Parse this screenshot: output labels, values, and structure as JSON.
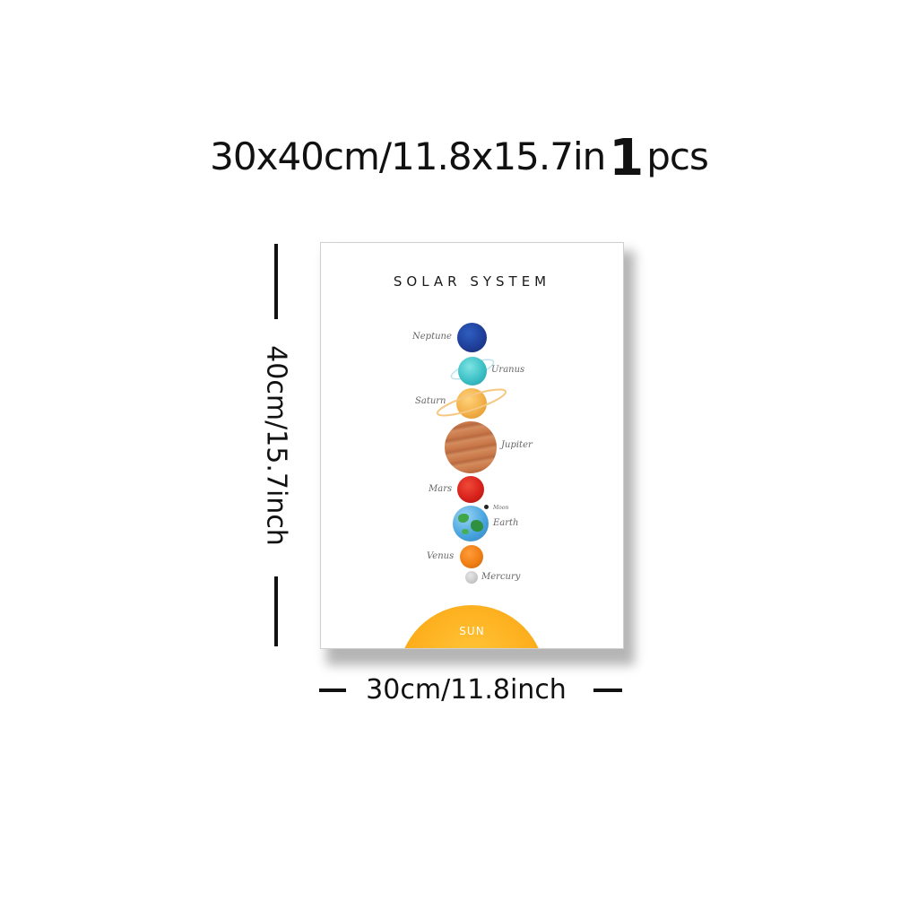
{
  "headline": {
    "size_text": "30x40cm/11.8x15.7in",
    "quantity": "1",
    "unit": "pcs"
  },
  "poster": {
    "title": "SOLAR SYSTEM",
    "planets": [
      {
        "name": "Neptune",
        "color": "#1f3f9a"
      },
      {
        "name": "Uranus",
        "color": "#3cc1c6"
      },
      {
        "name": "Saturn",
        "color": "#f2b048"
      },
      {
        "name": "Jupiter",
        "color": "#c9784a"
      },
      {
        "name": "Mars",
        "color": "#d8221c"
      },
      {
        "name": "Moon",
        "color": "#222222"
      },
      {
        "name": "Earth",
        "color": "#4aa6df"
      },
      {
        "name": "Venus",
        "color": "#f07f14"
      },
      {
        "name": "Mercury",
        "color": "#c9c9c9"
      }
    ],
    "sun": {
      "name": "SUN",
      "color": "#fdae1d"
    }
  },
  "dimensions": {
    "height_label": "40cm/15.7inch",
    "width_label": "30cm/11.8inch"
  }
}
